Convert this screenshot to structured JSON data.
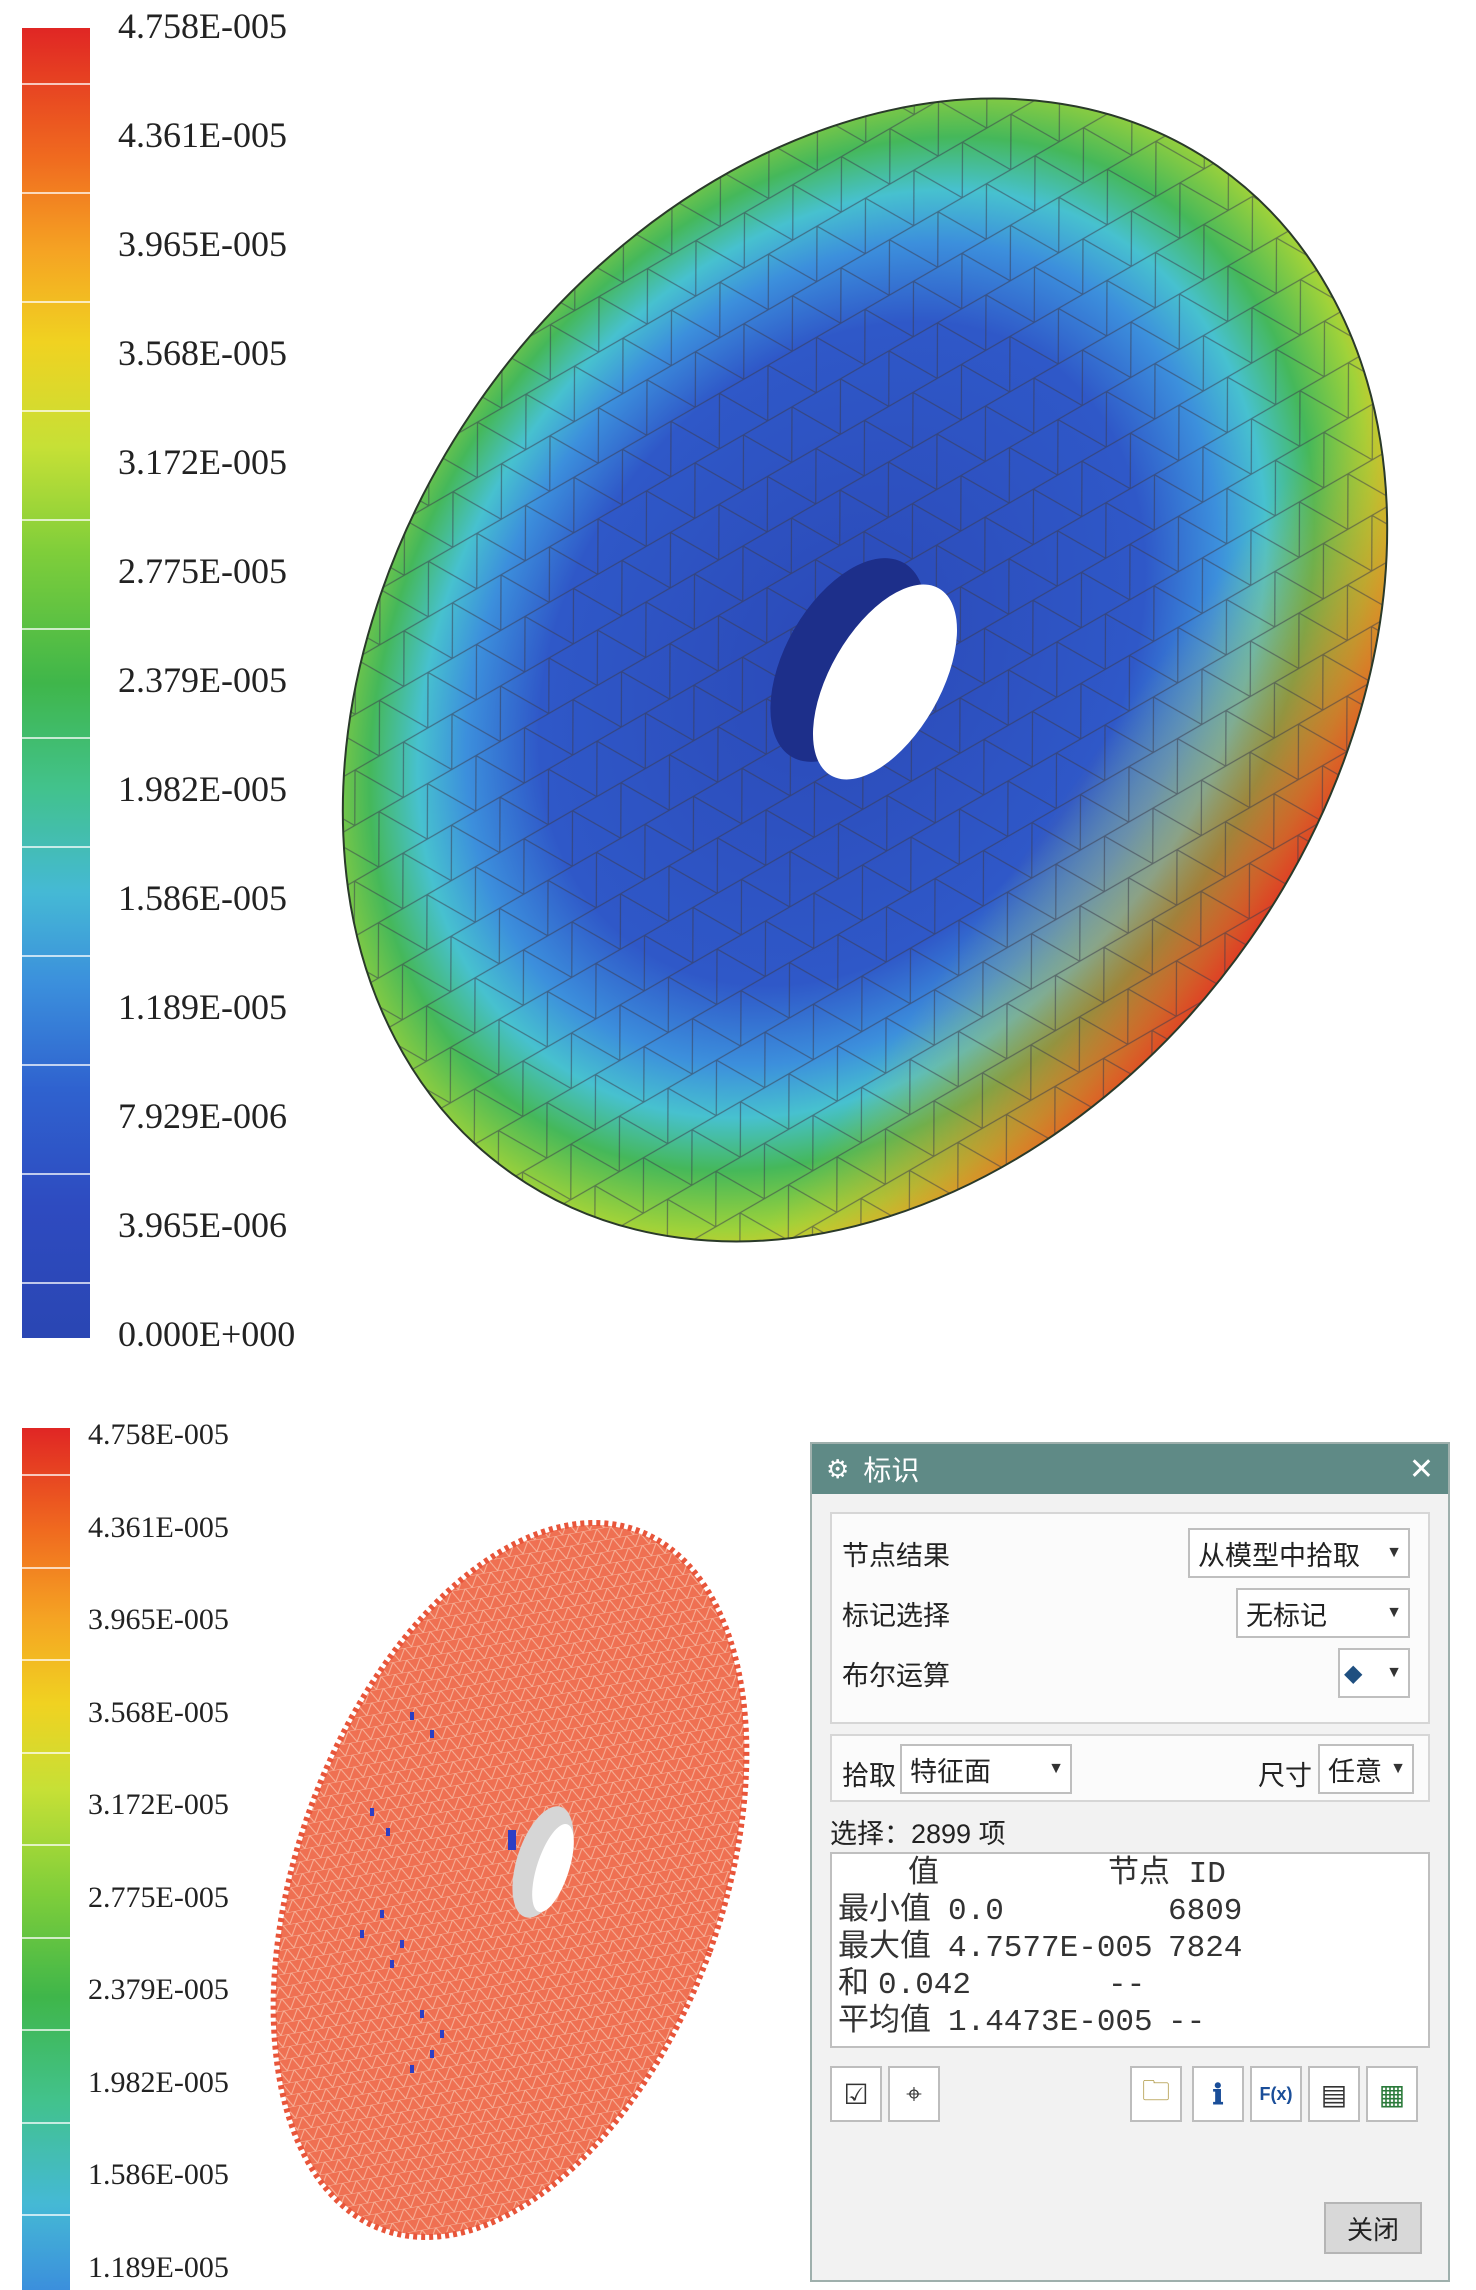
{
  "top_panel": {
    "legend_values": [
      "4.758E-005",
      "4.361E-005",
      "3.965E-005",
      "3.568E-005",
      "3.172E-005",
      "2.775E-005",
      "2.379E-005",
      "1.982E-005",
      "1.586E-005",
      "1.189E-005",
      "7.929E-006",
      "3.965E-006",
      "0.000E+000"
    ]
  },
  "bottom_panel": {
    "legend_values": [
      "4.758E-005",
      "4.361E-005",
      "3.965E-005",
      "3.568E-005",
      "3.172E-005",
      "2.775E-005",
      "2.379E-005",
      "1.982E-005",
      "1.586E-005",
      "1.189E-005"
    ]
  },
  "dialog": {
    "title": "标识",
    "close_glyph": "✕",
    "node_result_label": "节点结果",
    "node_result_value": "从模型中拾取",
    "mark_select_label": "标记选择",
    "mark_select_value": "无标记",
    "boolean_label": "布尔运算",
    "pick_label": "拾取",
    "pick_value": "特征面",
    "size_label": "尺寸",
    "size_value": "任意",
    "selection_count": "选择：2899 项",
    "results": {
      "header_value": "值",
      "header_node": "节点 ID",
      "min_label": "最小值",
      "min_value": "0.0",
      "min_node": "6809",
      "max_label": "最大值",
      "max_value": "4.7577E-005",
      "max_node": "7824",
      "sum_label": "和",
      "sum_value": "0.042",
      "sum_node": "--",
      "avg_label": "平均值",
      "avg_value": "1.4473E-005",
      "avg_node": "--"
    },
    "close_button_label": "关闭"
  },
  "colors": {
    "titlebar": "#5f8a86",
    "disc_edge_red": "#e02624",
    "disc_center_blue": "#2b49b7",
    "bottom_disc": "#ef7052"
  }
}
